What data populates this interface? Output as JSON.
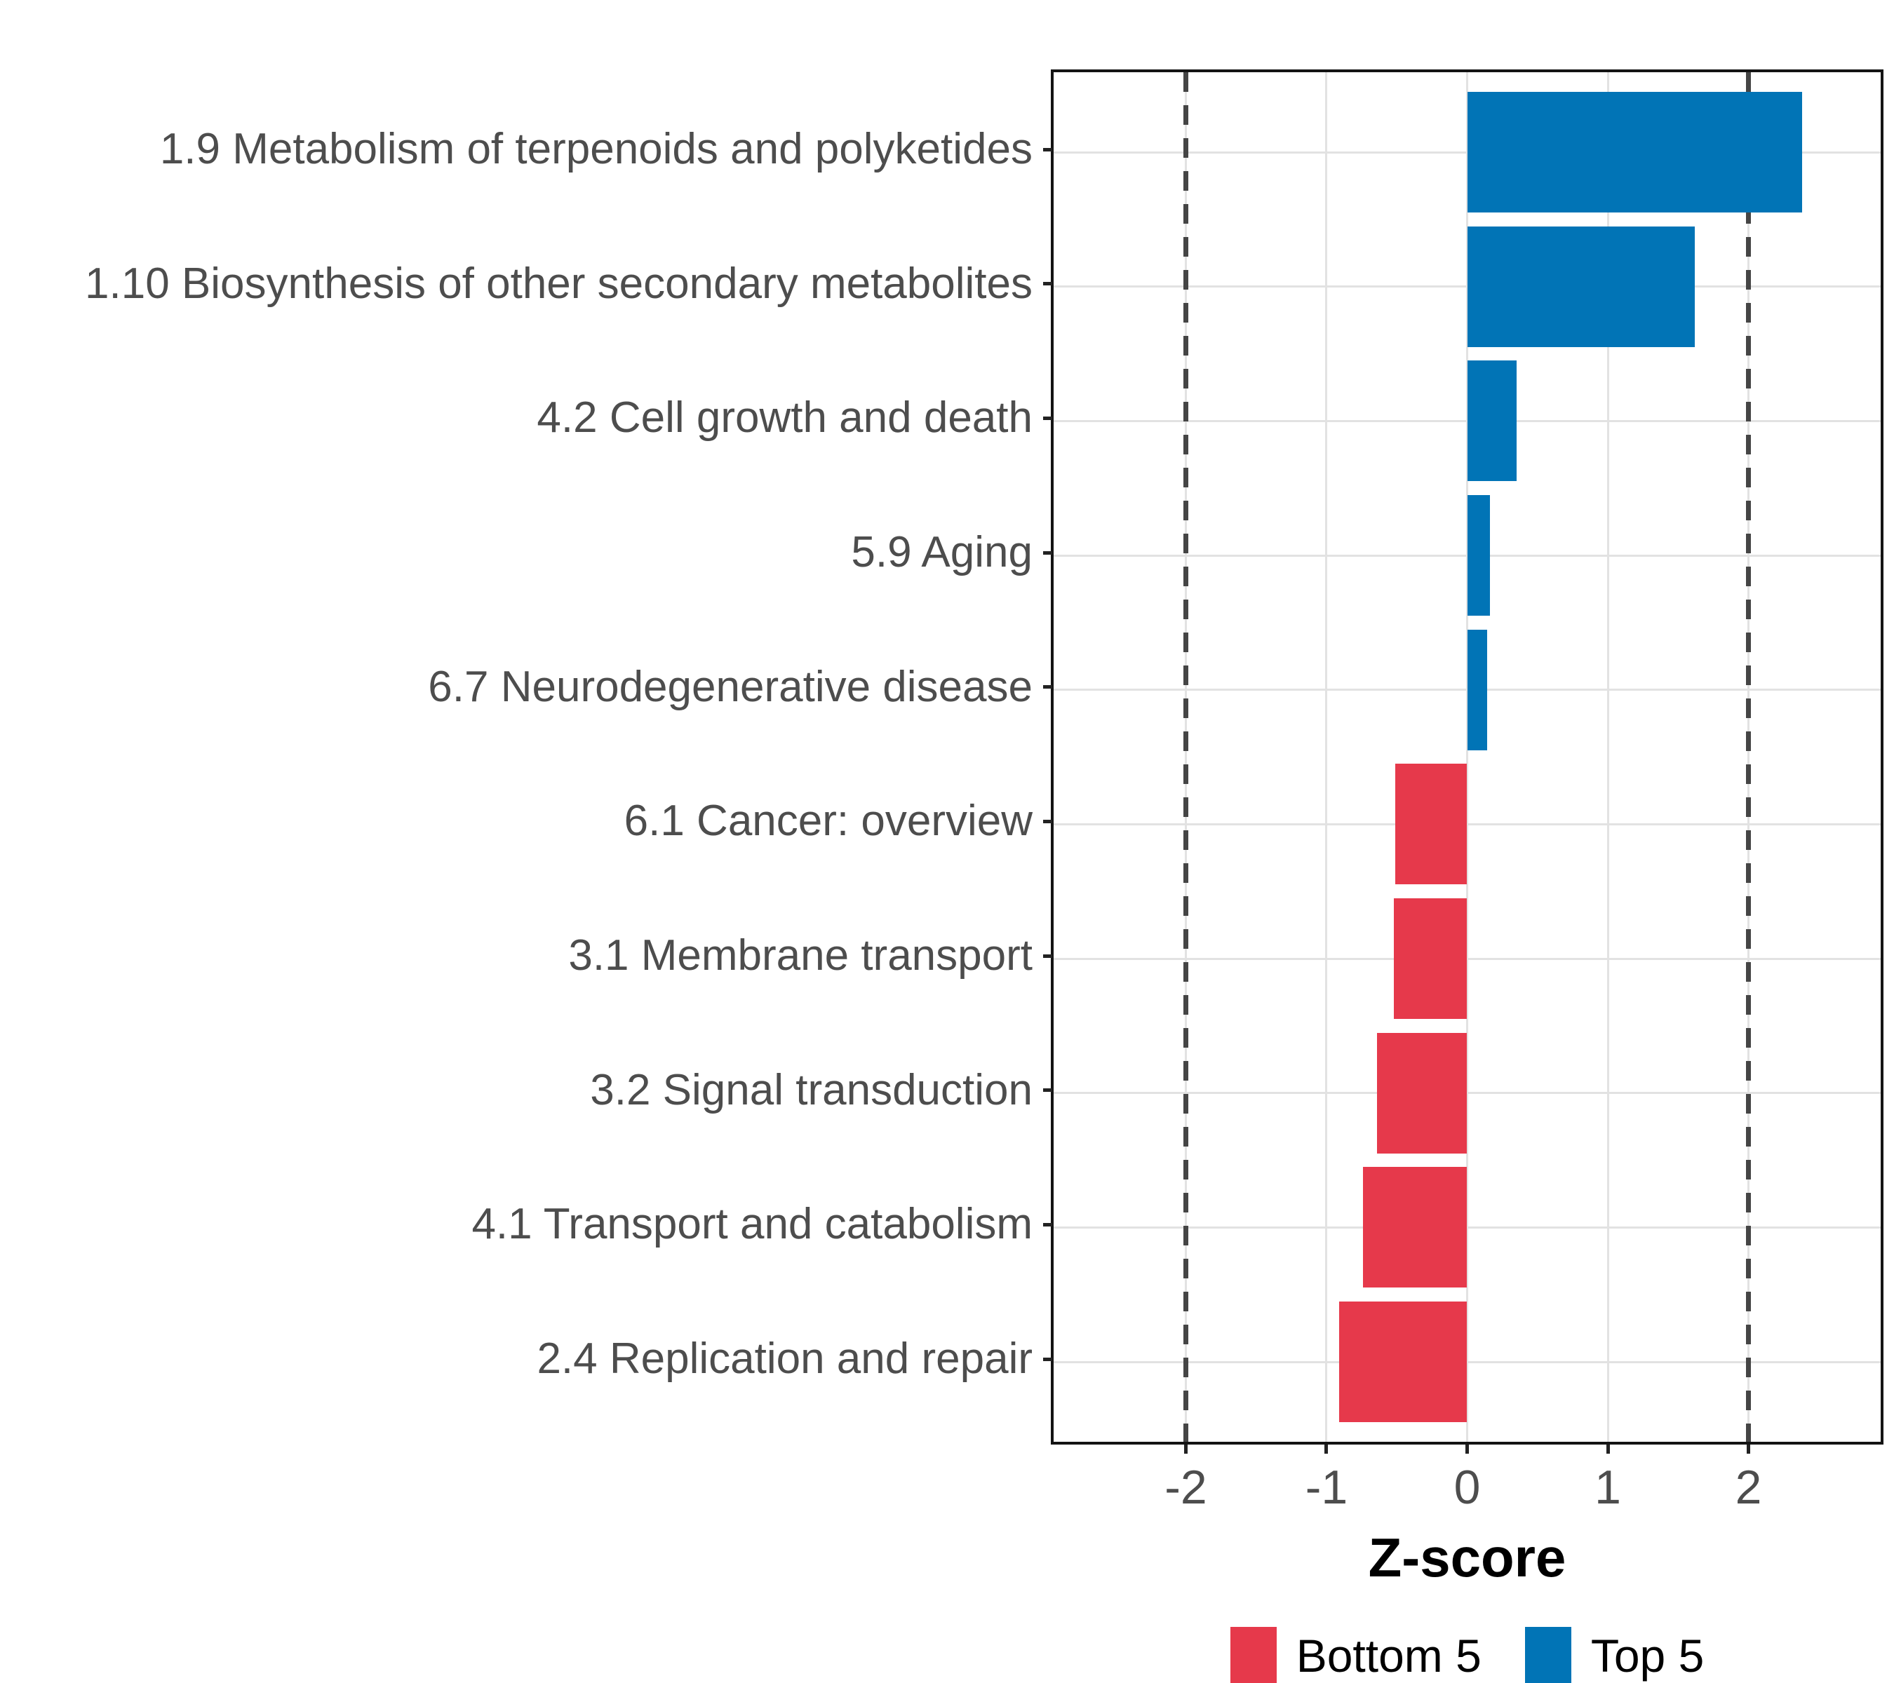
{
  "chart_data": {
    "type": "bar",
    "orientation": "horizontal",
    "title": "",
    "xlabel": "Z-score",
    "ylabel": "",
    "xlim": [
      -2.94,
      2.94
    ],
    "x_ticks": [
      -2,
      -1,
      0,
      1,
      2
    ],
    "grid": true,
    "reference_lines": {
      "values": [
        -2,
        2
      ],
      "style": "dashed",
      "color": "#454545"
    },
    "bars": [
      {
        "category": "1.9 Metabolism of terpenoids and polyketides",
        "value": 2.38,
        "group": "Top 5"
      },
      {
        "category": "1.10 Biosynthesis of other secondary metabolites",
        "value": 1.62,
        "group": "Top 5"
      },
      {
        "category": "4.2 Cell growth and death",
        "value": 0.35,
        "group": "Top 5"
      },
      {
        "category": "5.9 Aging",
        "value": 0.16,
        "group": "Top 5"
      },
      {
        "category": "6.7 Neurodegenerative disease",
        "value": 0.14,
        "group": "Top 5"
      },
      {
        "category": "6.1 Cancer: overview",
        "value": -0.51,
        "group": "Bottom 5"
      },
      {
        "category": "3.1 Membrane transport",
        "value": -0.52,
        "group": "Bottom 5"
      },
      {
        "category": "3.2 Signal transduction",
        "value": -0.64,
        "group": "Bottom 5"
      },
      {
        "category": "4.1 Transport and catabolism",
        "value": -0.74,
        "group": "Bottom 5"
      },
      {
        "category": "2.4 Replication and repair",
        "value": -0.91,
        "group": "Bottom 5"
      }
    ],
    "series_colors": {
      "Bottom 5": "#E6394B",
      "Top 5": "#0174B6"
    },
    "legend_position": "bottom",
    "legend": {
      "entries": [
        {
          "label": "Bottom 5",
          "color": "#E6394B"
        },
        {
          "label": "Top 5",
          "color": "#0174B6"
        }
      ]
    },
    "style_colors": {
      "grid": "#E2E2E2",
      "axis_text": "#4D4D4D",
      "panel_border": "#141414",
      "tick": "#222222",
      "dashed_line": "#454545",
      "background": "#FFFFFF"
    }
  }
}
